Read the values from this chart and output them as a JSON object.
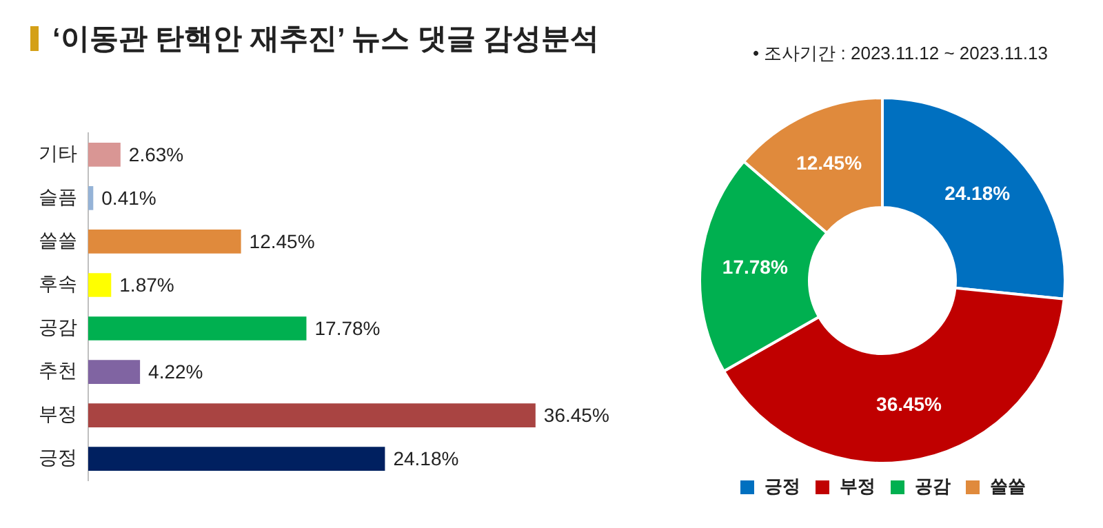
{
  "chart_data": [
    {
      "type": "bar",
      "title": "‘이동관 탄핵안 재추진’ 뉴스 댓글 감성분석",
      "orientation": "horizontal",
      "categories": [
        "기타",
        "슬픔",
        "쓸쓸",
        "후속",
        "공감",
        "추천",
        "부정",
        "긍정"
      ],
      "values": [
        2.63,
        0.41,
        12.45,
        1.87,
        17.78,
        4.22,
        36.45,
        24.18
      ],
      "colors": [
        "#d99694",
        "#95b3d7",
        "#e08a3c",
        "#ffff00",
        "#00b050",
        "#8064a2",
        "#a94442",
        "#002060"
      ],
      "value_labels": [
        "2.63%",
        "0.41%",
        "12.45%",
        "1.87%",
        "17.78%",
        "4.22%",
        "36.45%",
        "24.18%"
      ],
      "grid": false,
      "legend": false
    },
    {
      "type": "donut",
      "annotations": [
        "•  조사기간 : 2023.11.12 ~ 2023.11.13"
      ],
      "categories": [
        "긍정",
        "부정",
        "공감",
        "쓸쓸"
      ],
      "values": [
        24.18,
        36.45,
        17.78,
        12.45
      ],
      "colors": [
        "#0070c0",
        "#c00000",
        "#00b050",
        "#e08a3c"
      ],
      "value_labels": [
        "24.18%",
        "36.45%",
        "17.78%",
        "12.45%"
      ],
      "legend": "bottom"
    }
  ]
}
